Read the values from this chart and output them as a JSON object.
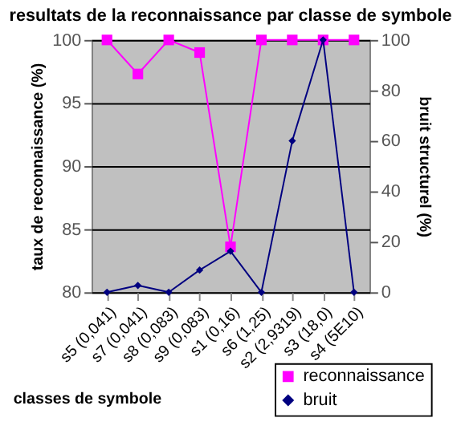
{
  "chart_data": {
    "type": "line",
    "title": "resultats de la reconnaissance par classe de symbole",
    "xlabel": "classes de symbole",
    "ylabel": "taux de reconnaissance (%)",
    "y2label": "bruit structurel (%)",
    "categories": [
      "s5 (0,041)",
      "s7 (0,041)",
      "s8 (0,083)",
      "s9 (0,083)",
      "s1 (0,16)",
      "s6 (1,25)",
      "s2 (2,9319)",
      "s3 (18,0)",
      "s4 (5E10)"
    ],
    "series": [
      {
        "name": "reconnaissance",
        "color": "#ff00ff",
        "marker": "square",
        "values": [
          100,
          97.3,
          100,
          99,
          83.6,
          100,
          100,
          100,
          100
        ]
      },
      {
        "name": "bruit",
        "color": "#000080",
        "marker": "diamond",
        "axis": "y2",
        "values": [
          0,
          2.7,
          0,
          8.8,
          16.3,
          0,
          60,
          100,
          0
        ]
      }
    ],
    "ylim": [
      80,
      100
    ],
    "yticks": [
      80,
      85,
      90,
      95,
      100
    ],
    "y2lim": [
      0,
      100
    ],
    "y2ticks": [
      0,
      20,
      40,
      60,
      80,
      100
    ],
    "grid": "y",
    "legend": "bottom right"
  }
}
